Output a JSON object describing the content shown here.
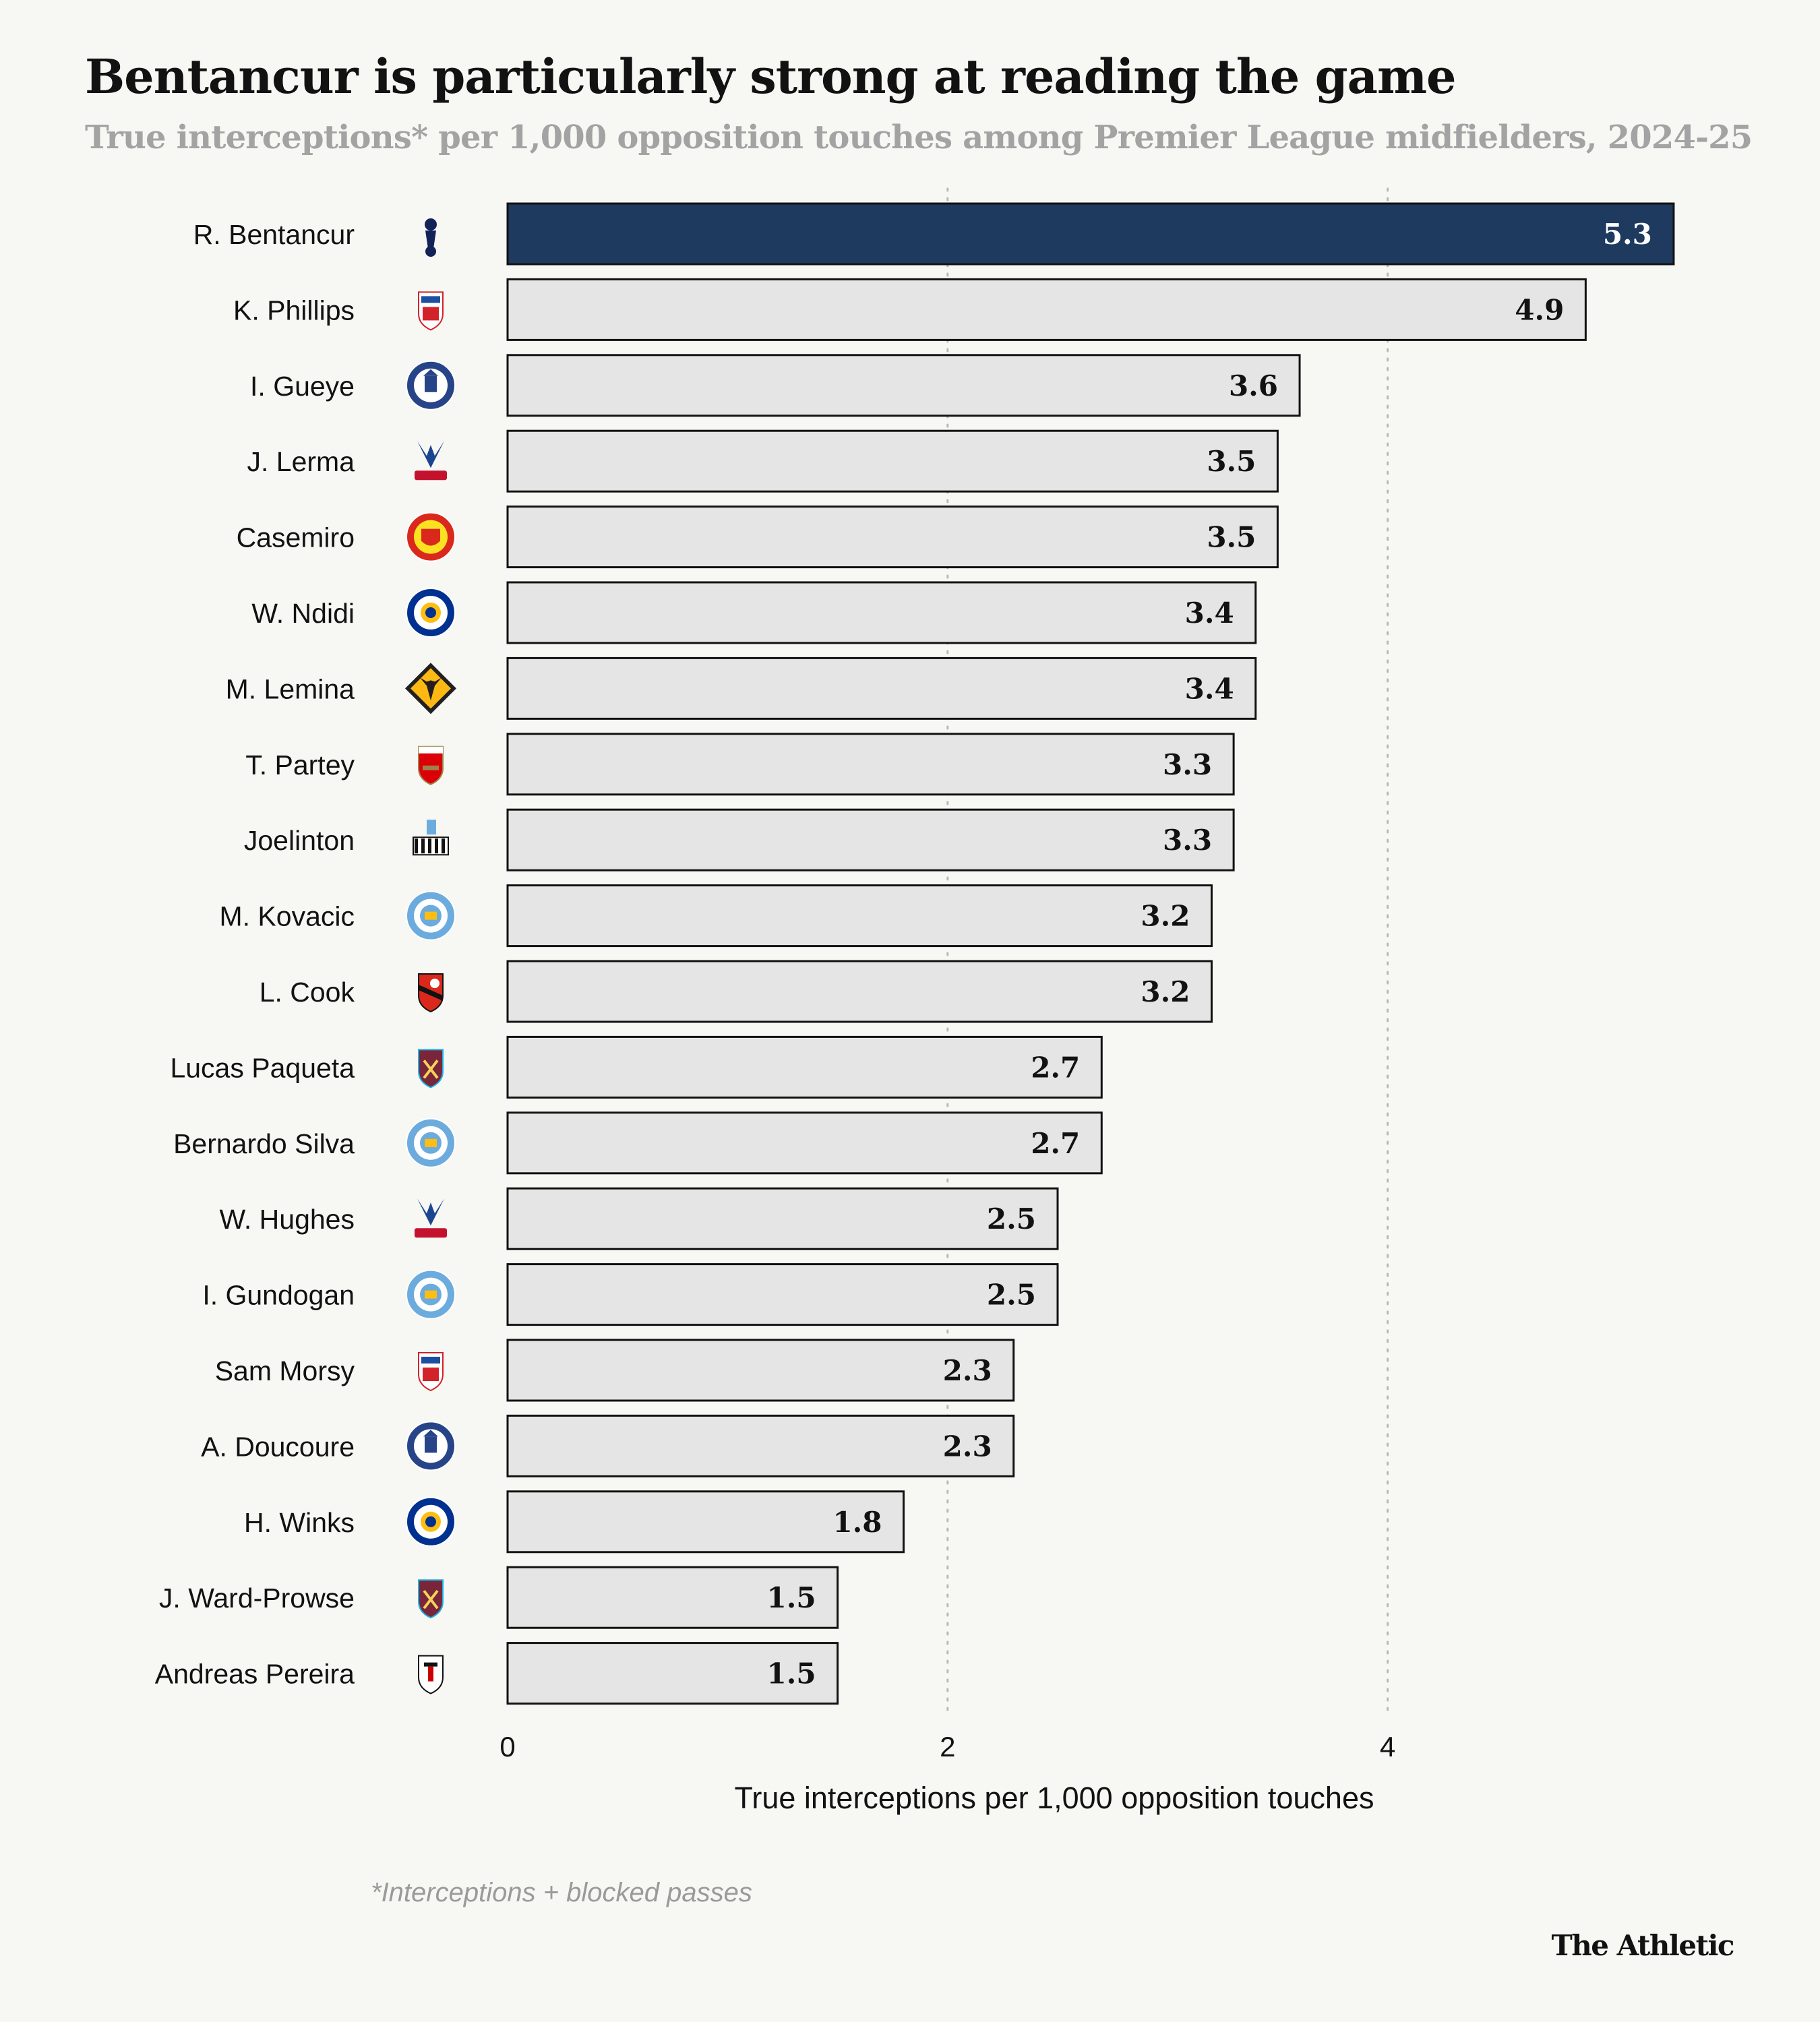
{
  "header": {
    "title": "Bentancur is particularly strong at reading the game",
    "subtitle": "True interceptions* per 1,000 opposition touches among Premier League midfielders, 2024-25"
  },
  "footer": {
    "footnote": "*Interceptions + blocked passes",
    "brand": "The Athletic"
  },
  "colors": {
    "highlight_bar": "#1e3a5f",
    "default_bar": "#e4e5e4",
    "bar_outline": "#121212",
    "grid": "#b8b8b8"
  },
  "chart_data": {
    "type": "bar",
    "orientation": "horizontal",
    "categories": [
      "R. Bentancur",
      "K. Phillips",
      "I. Gueye",
      "J. Lerma",
      "Casemiro",
      "W. Ndidi",
      "M. Lemina",
      "T. Partey",
      "Joelinton",
      "M. Kovacic",
      "L. Cook",
      "Lucas Paqueta",
      "Bernardo Silva",
      "W. Hughes",
      "I. Gundogan",
      "Sam Morsy",
      "A. Doucoure",
      "H. Winks",
      "J. Ward-Prowse",
      "Andreas Pereira"
    ],
    "value_labels": [
      "5.3",
      "4.9",
      "3.6",
      "3.5",
      "3.5",
      "3.4",
      "3.4",
      "3.3",
      "3.3",
      "3.2",
      "3.2",
      "2.7",
      "2.7",
      "2.5",
      "2.5",
      "2.3",
      "2.3",
      "1.8",
      "1.5",
      "1.5"
    ],
    "series": [
      {
        "values": [
          5.3,
          4.9,
          3.6,
          3.5,
          3.5,
          3.4,
          3.4,
          3.3,
          3.3,
          3.2,
          3.2,
          2.7,
          2.7,
          2.5,
          2.5,
          2.3,
          2.3,
          1.8,
          1.5,
          1.5
        ]
      }
    ],
    "clubs": [
      "Tottenham Hotspur",
      "Ipswich Town",
      "Everton",
      "Crystal Palace",
      "Manchester United",
      "Leicester City",
      "Wolverhampton Wanderers",
      "Arsenal",
      "Newcastle United",
      "Manchester City",
      "AFC Bournemouth",
      "West Ham United",
      "Manchester City",
      "Crystal Palace",
      "Manchester City",
      "Ipswich Town",
      "Everton",
      "Leicester City",
      "West Ham United",
      "Fulham"
    ],
    "club_icons": [
      "tottenham-crest-icon",
      "ipswich-crest-icon",
      "everton-crest-icon",
      "crystal-palace-crest-icon",
      "man-utd-crest-icon",
      "leicester-crest-icon",
      "wolves-crest-icon",
      "arsenal-crest-icon",
      "newcastle-crest-icon",
      "man-city-crest-icon",
      "bournemouth-crest-icon",
      "west-ham-crest-icon",
      "man-city-crest-icon",
      "crystal-palace-crest-icon",
      "man-city-crest-icon",
      "ipswich-crest-icon",
      "everton-crest-icon",
      "leicester-crest-icon",
      "west-ham-crest-icon",
      "fulham-crest-icon"
    ],
    "highlight_index": 0,
    "xlabel": "True interceptions per 1,000 opposition touches",
    "ylabel": "",
    "xlim": [
      0,
      5.3
    ],
    "xticks": [
      0,
      2,
      4
    ],
    "grid": "vertical dotted",
    "legend": "none"
  }
}
